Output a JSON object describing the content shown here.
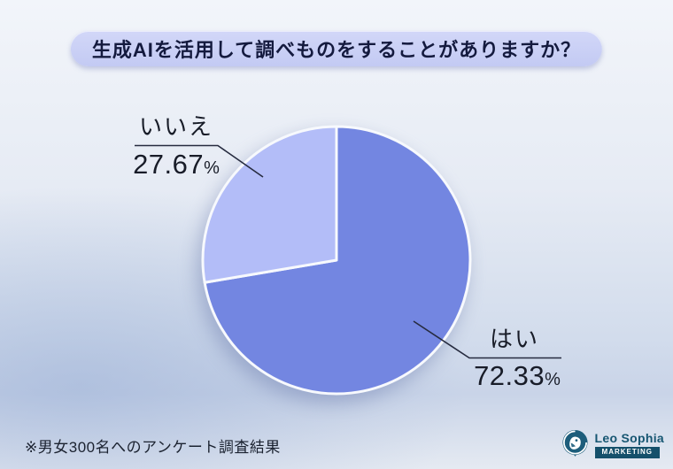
{
  "title": "生成AIを活用して調べものをすることがありますか？",
  "chart_data": {
    "type": "pie",
    "title": "生成AIを活用して調べものをすることがありますか？",
    "unit": "%",
    "start_angle_deg": 0,
    "direction": "clockwise",
    "legend_position": "none",
    "slices": [
      {
        "label": "はい",
        "value": 72.33,
        "color": "#7386E1"
      },
      {
        "label": "いいえ",
        "value": 27.67,
        "color": "#B3BDF8"
      }
    ]
  },
  "callouts": {
    "yes": {
      "label": "はい",
      "value": "72.33",
      "unit": "%"
    },
    "no": {
      "label": "いいえ",
      "value": "27.67",
      "unit": "%"
    }
  },
  "footnote": "※男女300名へのアンケート調査結果",
  "logo": {
    "brand": "Leo Sophia",
    "tagline": "MARKETING",
    "icon": "lion-icon"
  },
  "colors": {
    "slice_yes": "#7386E1",
    "slice_no": "#B3BDF8",
    "slice_gap": "#F7F9FD",
    "title_text": "#141A3E",
    "pill_bg": "#C8CEF4",
    "leader_line": "#262B3F",
    "brand_teal": "#175672"
  }
}
